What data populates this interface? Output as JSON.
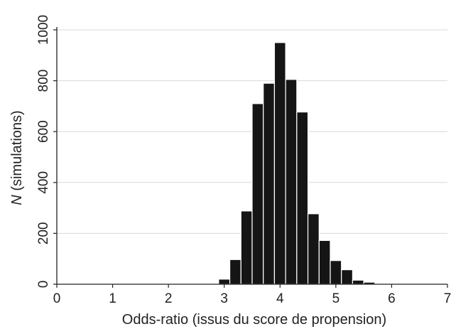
{
  "chart_data": {
    "type": "bar",
    "title": "",
    "xlabel": "Odds-ratio (issus du score de propension)",
    "ylabel_italic": "N",
    "ylabel_rest": " (simulations)",
    "xlim": [
      0,
      7
    ],
    "ylim": [
      0,
      1000
    ],
    "xticks": [
      "0",
      "1",
      "2",
      "3",
      "4",
      "5",
      "6",
      "7"
    ],
    "yticks": [
      "0",
      "200",
      "400",
      "600",
      "800",
      "1000"
    ],
    "grid": "horizontal",
    "bin_width": 0.2,
    "bins": [
      {
        "x0": 2.9,
        "value": 20
      },
      {
        "x0": 3.1,
        "value": 97
      },
      {
        "x0": 3.3,
        "value": 288
      },
      {
        "x0": 3.5,
        "value": 710
      },
      {
        "x0": 3.7,
        "value": 790
      },
      {
        "x0": 3.9,
        "value": 950
      },
      {
        "x0": 4.1,
        "value": 805
      },
      {
        "x0": 4.3,
        "value": 677
      },
      {
        "x0": 4.5,
        "value": 277
      },
      {
        "x0": 4.7,
        "value": 172
      },
      {
        "x0": 4.9,
        "value": 93
      },
      {
        "x0": 5.1,
        "value": 57
      },
      {
        "x0": 5.3,
        "value": 16
      },
      {
        "x0": 5.5,
        "value": 8
      },
      {
        "x0": 5.7,
        "value": 2
      },
      {
        "x0": 5.9,
        "value": 1
      }
    ]
  }
}
